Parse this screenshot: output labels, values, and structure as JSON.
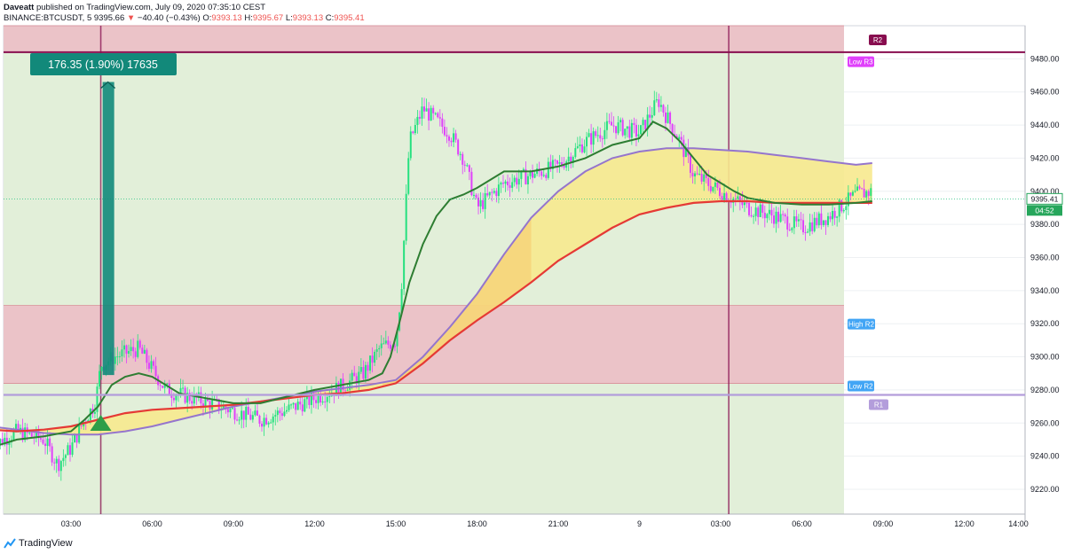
{
  "header": {
    "publisher": "Daveatt",
    "published_text": "published on TradingView.com, July 09, 2020 07:35:10 CEST",
    "symbol": "BINANCE:BTCUSDT, 5",
    "last": "9395.66",
    "change_arrow": "▼",
    "change": "−40.40 (−0.43%)",
    "o_label": "O:",
    "o": "9393.13",
    "h_label": "H:",
    "h": "9395.67",
    "l_label": "L:",
    "l": "9393.13",
    "c_label": "C:",
    "c": "9395.41"
  },
  "footer": {
    "brand": "TradingView"
  },
  "colors": {
    "green_zone": "#e2efd9",
    "red_zone": "#ebc3c8",
    "purple_line": "#b39ddb",
    "maroon_line": "#880e4f",
    "fast_ma": "#2e7d32",
    "slow_ma": "#e53935",
    "arc": "#9575cd",
    "fill_yellow": "#f7e98e",
    "candle_up": "#26e07f",
    "candle_down": "#e040fb"
  },
  "chart_data": {
    "type": "line",
    "y_axis": {
      "ylim": [
        9205,
        9500
      ],
      "ticks": [
        9220,
        9240,
        9260,
        9280,
        9300,
        9320,
        9340,
        9360,
        9380,
        9400,
        9420,
        9440,
        9460,
        9480
      ]
    },
    "x_axis": {
      "ticks": [
        "03:00",
        "06:00",
        "09:00",
        "12:00",
        "15:00",
        "18:00",
        "21:00",
        "9",
        "03:00",
        "06:00",
        "09:00",
        "12:00",
        "14:00"
      ]
    },
    "price_series": {
      "name": "BTCUSDT 5m",
      "x": [
        0,
        1,
        2,
        2.5,
        3,
        3.5,
        3.9,
        4.1,
        4.6,
        5.5,
        6.5,
        7.5,
        8.5,
        10,
        11,
        12,
        13,
        13.8,
        14.4,
        15,
        15.2,
        15.5,
        16,
        17,
        17.5,
        18,
        19,
        20,
        21,
        22,
        23,
        24,
        24.7,
        25,
        25.5,
        26,
        27,
        28,
        29,
        30,
        31,
        32,
        32.6
      ],
      "y": [
        9245,
        9255,
        9250,
        9235,
        9245,
        9262,
        9272,
        9295,
        9300,
        9305,
        9280,
        9275,
        9270,
        9262,
        9268,
        9275,
        9282,
        9290,
        9305,
        9310,
        9340,
        9430,
        9450,
        9435,
        9420,
        9390,
        9405,
        9410,
        9415,
        9430,
        9440,
        9435,
        9455,
        9445,
        9430,
        9410,
        9400,
        9390,
        9385,
        9378,
        9385,
        9398,
        9400
      ]
    },
    "fast_ma": {
      "x": [
        0,
        1,
        2,
        3,
        3.5,
        4,
        4.5,
        5,
        5.5,
        6,
        6.5,
        7,
        8,
        9,
        10,
        11,
        12,
        13,
        14,
        14.5,
        14.8,
        15.2,
        15.5,
        16,
        16.5,
        17,
        17.5,
        18,
        19,
        20,
        21,
        22,
        23,
        24,
        24.5,
        25,
        25.5,
        26,
        26.5,
        27,
        27.5,
        28,
        29,
        30,
        31,
        32,
        32.6
      ],
      "y": [
        9245,
        9250,
        9252,
        9255,
        9262,
        9270,
        9283,
        9288,
        9290,
        9288,
        9283,
        9278,
        9275,
        9272,
        9272,
        9276,
        9280,
        9283,
        9286,
        9290,
        9300,
        9325,
        9345,
        9368,
        9385,
        9395,
        9398,
        9402,
        9412,
        9412,
        9415,
        9420,
        9428,
        9432,
        9442,
        9438,
        9430,
        9420,
        9410,
        9405,
        9400,
        9396,
        9393,
        9392,
        9392,
        9393,
        9394
      ]
    },
    "slow_ma": {
      "x": [
        0,
        1,
        2,
        3,
        4,
        5,
        6,
        7,
        8,
        9,
        10,
        11,
        12,
        13,
        14,
        15,
        16,
        17,
        18,
        19,
        20,
        21,
        22,
        23,
        24,
        25,
        26,
        27,
        28,
        29,
        30,
        31,
        32,
        32.6
      ],
      "y": [
        9256,
        9255,
        9256,
        9258,
        9262,
        9266,
        9268,
        9269,
        9270,
        9271,
        9273,
        9275,
        9277,
        9278,
        9280,
        9284,
        9296,
        9310,
        9322,
        9333,
        9345,
        9358,
        9368,
        9378,
        9386,
        9390,
        9393,
        9394,
        9394,
        9393,
        9393,
        9393,
        9393,
        9393
      ]
    },
    "arc_line": {
      "x": [
        0,
        1,
        2,
        3,
        4,
        5,
        6,
        7,
        8,
        9,
        10,
        11,
        12,
        13,
        14,
        15,
        16,
        17,
        18,
        19,
        20,
        21,
        22,
        23,
        24,
        25,
        26,
        27,
        28,
        29,
        30,
        31,
        32,
        32.6
      ],
      "y": [
        9258,
        9256,
        9254,
        9253,
        9253,
        9255,
        9258,
        9262,
        9266,
        9270,
        9273,
        9276,
        9279,
        9281,
        9283,
        9286,
        9300,
        9318,
        9338,
        9362,
        9384,
        9400,
        9412,
        9420,
        9424,
        9426,
        9426,
        9425,
        9424,
        9422,
        9420,
        9418,
        9416,
        9417
      ]
    },
    "horizontal_levels": [
      {
        "name": "R2",
        "price": 9484,
        "label": "R2"
      },
      {
        "name": "Low R3",
        "price": 9482,
        "label": "Low R3"
      },
      {
        "name": "High R2",
        "price": 9331,
        "label": "High R2"
      },
      {
        "name": "Low R2",
        "price": 9284,
        "label": "Low R2"
      },
      {
        "name": "R1",
        "price": 9277,
        "label": "R1"
      }
    ],
    "zones": [
      {
        "type": "resistance",
        "from": 9484,
        "to": 9500
      },
      {
        "type": "resistance",
        "from": 9284,
        "to": 9331
      }
    ],
    "measure": {
      "label": "176.35 (1.90%) 17635",
      "from_price": 9289,
      "to_price": 9466
    },
    "current_price": {
      "value": "9395.41",
      "countdown": "04:52"
    },
    "signal_marker": {
      "type": "buy-triangle",
      "price": 9258
    }
  }
}
